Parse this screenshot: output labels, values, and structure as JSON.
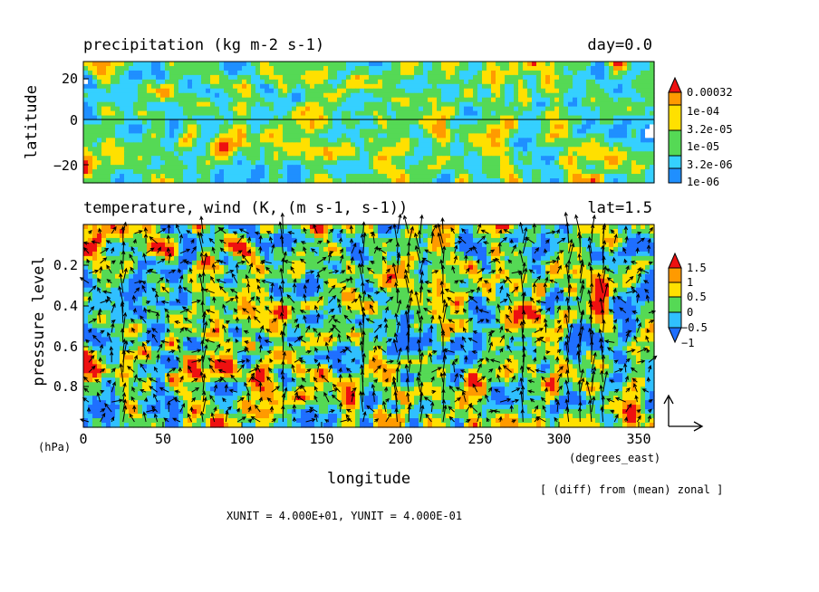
{
  "chart_data": [
    {
      "type": "heatmap",
      "title": "precipitation (kg m-2 s-1)",
      "title_right": "day=0.0",
      "ylabel": "latitude",
      "yticks": [
        "20",
        "0",
        "−20"
      ],
      "ylim": [
        -28,
        28
      ],
      "xlim": [
        0,
        360
      ],
      "grid": false,
      "colorbar": {
        "labels": [
          "0.00032",
          "1e-04",
          "3.2e-05",
          "1e-05",
          "3.2e-06",
          "1e-06"
        ],
        "colors": [
          "#ffffff",
          "#1f8fff",
          "#35d0ff",
          "#55d955",
          "#ffe000",
          "#ff9a00",
          "#ee1010"
        ],
        "placement": "right"
      }
    },
    {
      "type": "heatmap",
      "overlay": "vector",
      "title": "temperature, wind (K, (m s-1, s-1))",
      "title_right": "lat=1.5",
      "xlabel": "longitude",
      "x_unit": "(degrees_east)",
      "ylabel": "pressure level",
      "y_unit": "(hPa)",
      "xticks": [
        "0",
        "50",
        "100",
        "150",
        "200",
        "250",
        "300",
        "350"
      ],
      "yticks": [
        "0.2",
        "0.4",
        "0.6",
        "0.8"
      ],
      "xlim": [
        0,
        360
      ],
      "ylim": [
        1.0,
        0.0
      ],
      "grid": false,
      "colorbar": {
        "labels": [
          "1.5",
          "1",
          "0.5",
          "0",
          "−0.5",
          "−1"
        ],
        "colors": [
          "#1f6fff",
          "#30c0ff",
          "#55d955",
          "#ffe000",
          "#ff9a00",
          "#ee1010"
        ],
        "placement": "right"
      },
      "note": "[ (diff) from (mean) zonal ]",
      "units_line": "XUNIT = 4.000E+01, YUNIT = 4.000E-01"
    }
  ]
}
